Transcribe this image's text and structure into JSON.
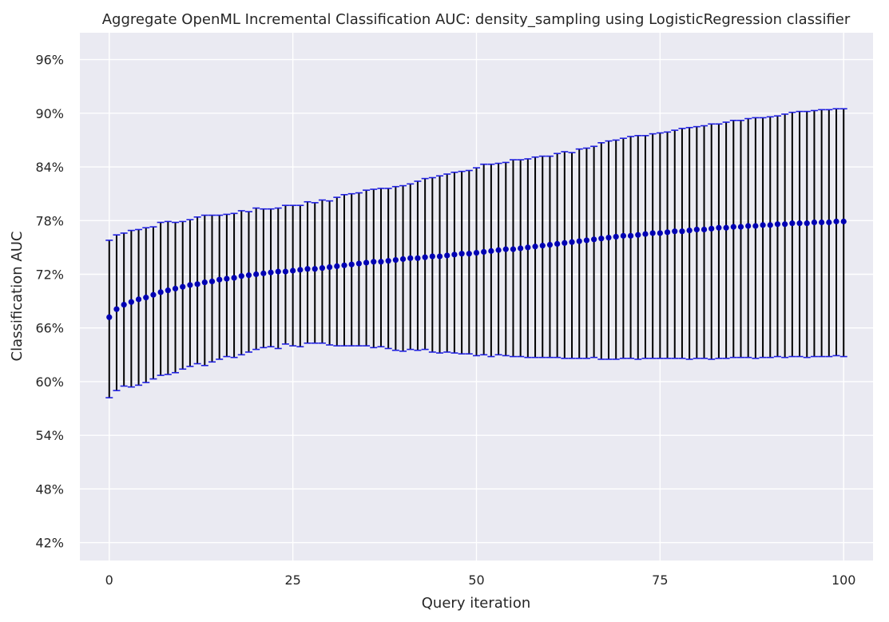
{
  "chart_data": {
    "type": "scatter",
    "title": "Aggregate OpenML Incremental Classification AUC: density_sampling using LogisticRegression classifier",
    "xlabel": "Query iteration",
    "ylabel": "Classification AUC",
    "xlim": [
      -4,
      104
    ],
    "ylim": [
      0.4,
      0.99
    ],
    "x_ticks": [
      0,
      25,
      50,
      75,
      100
    ],
    "x_tick_labels": [
      "0",
      "25",
      "50",
      "75",
      "100"
    ],
    "y_ticks": [
      0.42,
      0.48,
      0.54,
      0.6,
      0.66,
      0.72,
      0.78,
      0.84,
      0.9,
      0.96
    ],
    "y_tick_labels": [
      "42%",
      "48%",
      "54%",
      "60%",
      "66%",
      "72%",
      "78%",
      "84%",
      "90%",
      "96%"
    ],
    "grid": true,
    "background": "#EAEAF2",
    "point_color": "#0000B4",
    "errorbar_color": "#000000",
    "cap_color": "#1F1FE0",
    "series": [
      {
        "x": [
          0,
          1,
          2,
          3,
          4,
          5,
          6,
          7,
          8,
          9,
          10,
          11,
          12,
          13,
          14,
          15,
          16,
          17,
          18,
          19,
          20,
          21,
          22,
          23,
          24,
          25,
          26,
          27,
          28,
          29,
          30,
          31,
          32,
          33,
          34,
          35,
          36,
          37,
          38,
          39,
          40,
          41,
          42,
          43,
          44,
          45,
          46,
          47,
          48,
          49,
          50,
          51,
          52,
          53,
          54,
          55,
          56,
          57,
          58,
          59,
          60,
          61,
          62,
          63,
          64,
          65,
          66,
          67,
          68,
          69,
          70,
          71,
          72,
          73,
          74,
          75,
          76,
          77,
          78,
          79,
          80,
          81,
          82,
          83,
          84,
          85,
          86,
          87,
          88,
          89,
          90,
          91,
          92,
          93,
          94,
          95,
          96,
          97,
          98,
          99,
          100
        ],
        "y": [
          0.672,
          0.681,
          0.686,
          0.689,
          0.692,
          0.694,
          0.697,
          0.7,
          0.702,
          0.704,
          0.706,
          0.708,
          0.709,
          0.711,
          0.712,
          0.714,
          0.715,
          0.716,
          0.718,
          0.719,
          0.72,
          0.721,
          0.722,
          0.723,
          0.723,
          0.724,
          0.725,
          0.726,
          0.726,
          0.727,
          0.728,
          0.729,
          0.73,
          0.731,
          0.732,
          0.733,
          0.734,
          0.734,
          0.735,
          0.736,
          0.737,
          0.738,
          0.738,
          0.739,
          0.74,
          0.74,
          0.741,
          0.742,
          0.743,
          0.743,
          0.744,
          0.745,
          0.746,
          0.747,
          0.748,
          0.748,
          0.749,
          0.75,
          0.751,
          0.752,
          0.753,
          0.754,
          0.755,
          0.756,
          0.757,
          0.758,
          0.759,
          0.76,
          0.761,
          0.762,
          0.763,
          0.763,
          0.764,
          0.765,
          0.766,
          0.766,
          0.767,
          0.768,
          0.768,
          0.769,
          0.77,
          0.77,
          0.771,
          0.772,
          0.772,
          0.773,
          0.773,
          0.774,
          0.774,
          0.775,
          0.775,
          0.776,
          0.776,
          0.777,
          0.777,
          0.777,
          0.778,
          0.778,
          0.778,
          0.779,
          0.779
        ],
        "y_lower": [
          0.582,
          0.59,
          0.595,
          0.594,
          0.596,
          0.599,
          0.603,
          0.607,
          0.608,
          0.61,
          0.614,
          0.617,
          0.62,
          0.618,
          0.622,
          0.625,
          0.628,
          0.627,
          0.63,
          0.633,
          0.636,
          0.638,
          0.639,
          0.637,
          0.642,
          0.64,
          0.639,
          0.643,
          0.643,
          0.643,
          0.641,
          0.64,
          0.64,
          0.64,
          0.64,
          0.64,
          0.638,
          0.639,
          0.637,
          0.635,
          0.634,
          0.636,
          0.635,
          0.636,
          0.633,
          0.632,
          0.633,
          0.632,
          0.631,
          0.631,
          0.629,
          0.63,
          0.628,
          0.63,
          0.629,
          0.628,
          0.628,
          0.627,
          0.627,
          0.627,
          0.627,
          0.627,
          0.626,
          0.626,
          0.626,
          0.626,
          0.627,
          0.625,
          0.625,
          0.625,
          0.626,
          0.626,
          0.625,
          0.626,
          0.626,
          0.626,
          0.626,
          0.626,
          0.626,
          0.625,
          0.626,
          0.626,
          0.625,
          0.626,
          0.626,
          0.627,
          0.627,
          0.627,
          0.626,
          0.627,
          0.627,
          0.628,
          0.627,
          0.628,
          0.628,
          0.627,
          0.628,
          0.628,
          0.628,
          0.629,
          0.628
        ],
        "y_upper": [
          0.758,
          0.764,
          0.766,
          0.769,
          0.77,
          0.772,
          0.773,
          0.778,
          0.779,
          0.778,
          0.779,
          0.781,
          0.784,
          0.786,
          0.786,
          0.786,
          0.787,
          0.788,
          0.791,
          0.79,
          0.794,
          0.793,
          0.793,
          0.794,
          0.797,
          0.797,
          0.797,
          0.801,
          0.8,
          0.803,
          0.802,
          0.806,
          0.809,
          0.81,
          0.811,
          0.814,
          0.815,
          0.816,
          0.816,
          0.818,
          0.819,
          0.821,
          0.824,
          0.827,
          0.828,
          0.83,
          0.832,
          0.834,
          0.835,
          0.836,
          0.839,
          0.843,
          0.843,
          0.844,
          0.845,
          0.848,
          0.848,
          0.849,
          0.851,
          0.852,
          0.852,
          0.855,
          0.857,
          0.856,
          0.86,
          0.861,
          0.863,
          0.867,
          0.869,
          0.87,
          0.872,
          0.874,
          0.875,
          0.875,
          0.877,
          0.878,
          0.879,
          0.881,
          0.883,
          0.884,
          0.885,
          0.886,
          0.888,
          0.888,
          0.89,
          0.892,
          0.892,
          0.894,
          0.895,
          0.895,
          0.896,
          0.897,
          0.899,
          0.901,
          0.902,
          0.902,
          0.903,
          0.904,
          0.904,
          0.905,
          0.905
        ]
      }
    ]
  }
}
